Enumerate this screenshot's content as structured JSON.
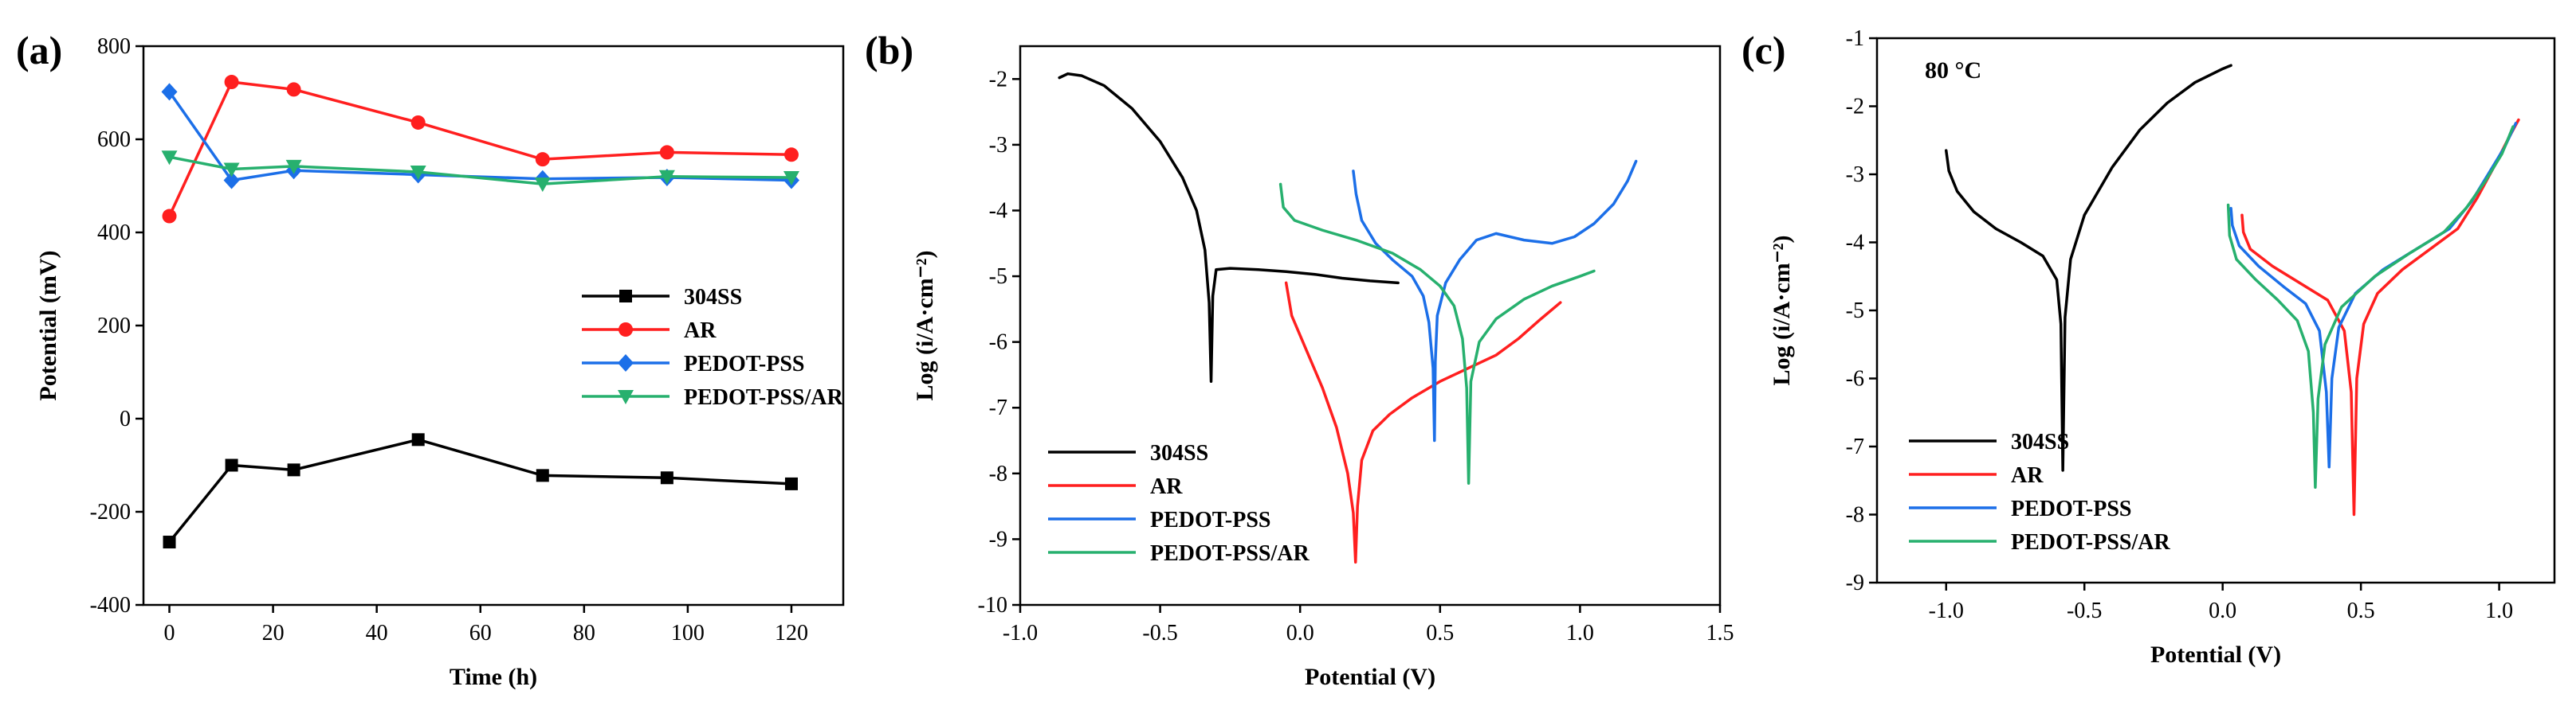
{
  "figure": {
    "panels": [
      "(a)",
      "(b)",
      "(c)"
    ]
  },
  "colors": {
    "304SS": "#000000",
    "AR": "#ff1f1f",
    "PEDOT-PSS": "#1c6fe8",
    "PEDOT-PSS/AR": "#27b06e"
  },
  "chart_data": [
    {
      "panel": "(a)",
      "type": "line",
      "title": "",
      "xlabel": "Time (h)",
      "ylabel": "Potential (mV)",
      "xlim": [
        -5,
        130
      ],
      "ylim": [
        -400,
        800
      ],
      "xticks": [
        0,
        20,
        40,
        60,
        80,
        100,
        120
      ],
      "yticks": [
        -400,
        -200,
        0,
        200,
        400,
        600,
        800
      ],
      "legend_position": "center-right",
      "x": [
        0,
        12,
        24,
        48,
        72,
        96,
        120
      ],
      "series": [
        {
          "name": "304SS",
          "marker": "square",
          "values": [
            -265,
            -100,
            -110,
            -45,
            -122,
            -127,
            -140
          ]
        },
        {
          "name": "AR",
          "marker": "circle",
          "values": [
            435,
            723,
            707,
            636,
            557,
            572,
            567
          ]
        },
        {
          "name": "PEDOT-PSS",
          "marker": "diamond",
          "values": [
            702,
            512,
            533,
            524,
            515,
            518,
            512
          ]
        },
        {
          "name": "PEDOT-PSS/AR",
          "marker": "triangle-down",
          "values": [
            562,
            536,
            542,
            530,
            504,
            520,
            518
          ]
        }
      ]
    },
    {
      "panel": "(b)",
      "type": "line",
      "title": "",
      "xlabel": "Potential (V)",
      "ylabel": "Log (i/A·cm⁻²)",
      "xlim": [
        -1.0,
        1.5
      ],
      "ylim": [
        -10,
        -1.5
      ],
      "xticks": [
        -1.0,
        -0.5,
        0.0,
        0.5,
        1.0,
        1.5
      ],
      "yticks": [
        -10,
        -9,
        -8,
        -7,
        -6,
        -5,
        -4,
        -3,
        -2
      ],
      "legend_position": "bottom-left",
      "series": [
        {
          "name": "304SS",
          "points": [
            [
              -0.86,
              -1.98
            ],
            [
              -0.83,
              -1.92
            ],
            [
              -0.78,
              -1.95
            ],
            [
              -0.7,
              -2.1
            ],
            [
              -0.6,
              -2.45
            ],
            [
              -0.5,
              -2.95
            ],
            [
              -0.42,
              -3.5
            ],
            [
              -0.37,
              -4.0
            ],
            [
              -0.34,
              -4.6
            ],
            [
              -0.325,
              -5.4
            ],
            [
              -0.318,
              -6.6
            ],
            [
              -0.312,
              -5.3
            ],
            [
              -0.3,
              -4.9
            ],
            [
              -0.25,
              -4.88
            ],
            [
              -0.15,
              -4.9
            ],
            [
              -0.05,
              -4.93
            ],
            [
              0.05,
              -4.97
            ],
            [
              0.15,
              -5.03
            ],
            [
              0.25,
              -5.07
            ],
            [
              0.35,
              -5.1
            ]
          ]
        },
        {
          "name": "AR",
          "points": [
            [
              -0.05,
              -5.1
            ],
            [
              -0.03,
              -5.6
            ],
            [
              0.02,
              -6.1
            ],
            [
              0.08,
              -6.7
            ],
            [
              0.13,
              -7.3
            ],
            [
              0.17,
              -8.0
            ],
            [
              0.19,
              -8.6
            ],
            [
              0.198,
              -9.35
            ],
            [
              0.205,
              -8.5
            ],
            [
              0.22,
              -7.8
            ],
            [
              0.26,
              -7.35
            ],
            [
              0.32,
              -7.1
            ],
            [
              0.4,
              -6.85
            ],
            [
              0.5,
              -6.6
            ],
            [
              0.6,
              -6.4
            ],
            [
              0.7,
              -6.2
            ],
            [
              0.78,
              -5.95
            ],
            [
              0.86,
              -5.65
            ],
            [
              0.93,
              -5.4
            ]
          ]
        },
        {
          "name": "PEDOT-PSS",
          "points": [
            [
              0.19,
              -3.4
            ],
            [
              0.2,
              -3.75
            ],
            [
              0.22,
              -4.15
            ],
            [
              0.27,
              -4.5
            ],
            [
              0.33,
              -4.75
            ],
            [
              0.4,
              -5.0
            ],
            [
              0.44,
              -5.3
            ],
            [
              0.46,
              -5.7
            ],
            [
              0.475,
              -6.4
            ],
            [
              0.48,
              -7.5
            ],
            [
              0.483,
              -6.3
            ],
            [
              0.49,
              -5.6
            ],
            [
              0.52,
              -5.1
            ],
            [
              0.57,
              -4.75
            ],
            [
              0.63,
              -4.45
            ],
            [
              0.7,
              -4.35
            ],
            [
              0.8,
              -4.45
            ],
            [
              0.9,
              -4.5
            ],
            [
              0.98,
              -4.4
            ],
            [
              1.05,
              -4.2
            ],
            [
              1.12,
              -3.9
            ],
            [
              1.17,
              -3.55
            ],
            [
              1.2,
              -3.25
            ]
          ]
        },
        {
          "name": "PEDOT-PSS/AR",
          "points": [
            [
              -0.07,
              -3.6
            ],
            [
              -0.06,
              -3.95
            ],
            [
              -0.02,
              -4.15
            ],
            [
              0.08,
              -4.3
            ],
            [
              0.2,
              -4.45
            ],
            [
              0.33,
              -4.65
            ],
            [
              0.43,
              -4.9
            ],
            [
              0.5,
              -5.15
            ],
            [
              0.55,
              -5.45
            ],
            [
              0.58,
              -5.95
            ],
            [
              0.595,
              -6.7
            ],
            [
              0.602,
              -8.15
            ],
            [
              0.61,
              -6.6
            ],
            [
              0.64,
              -6.0
            ],
            [
              0.7,
              -5.65
            ],
            [
              0.8,
              -5.35
            ],
            [
              0.9,
              -5.15
            ],
            [
              1.0,
              -5.0
            ],
            [
              1.05,
              -4.92
            ]
          ]
        }
      ]
    },
    {
      "panel": "(c)",
      "type": "line",
      "title": "",
      "annotation": "80 °C",
      "xlabel": "Potential (V)",
      "ylabel": "Log (i/A·cm⁻²)",
      "xlim": [
        -1.25,
        1.2
      ],
      "ylim": [
        -9,
        -1
      ],
      "xticks": [
        -1.0,
        -0.5,
        0.0,
        0.5,
        1.0
      ],
      "yticks": [
        -9,
        -8,
        -7,
        -6,
        -5,
        -4,
        -3,
        -2,
        -1
      ],
      "legend_position": "bottom-left",
      "series": [
        {
          "name": "304SS",
          "points": [
            [
              -1.0,
              -2.65
            ],
            [
              -0.99,
              -2.95
            ],
            [
              -0.96,
              -3.25
            ],
            [
              -0.9,
              -3.55
            ],
            [
              -0.82,
              -3.8
            ],
            [
              -0.73,
              -4.0
            ],
            [
              -0.65,
              -4.2
            ],
            [
              -0.6,
              -4.55
            ],
            [
              -0.585,
              -5.2
            ],
            [
              -0.578,
              -7.35
            ],
            [
              -0.57,
              -5.1
            ],
            [
              -0.55,
              -4.25
            ],
            [
              -0.5,
              -3.6
            ],
            [
              -0.4,
              -2.9
            ],
            [
              -0.3,
              -2.35
            ],
            [
              -0.2,
              -1.95
            ],
            [
              -0.1,
              -1.65
            ],
            [
              0.0,
              -1.45
            ],
            [
              0.03,
              -1.4
            ]
          ]
        },
        {
          "name": "AR",
          "points": [
            [
              0.07,
              -3.6
            ],
            [
              0.075,
              -3.85
            ],
            [
              0.1,
              -4.1
            ],
            [
              0.18,
              -4.35
            ],
            [
              0.28,
              -4.6
            ],
            [
              0.38,
              -4.85
            ],
            [
              0.44,
              -5.3
            ],
            [
              0.465,
              -6.2
            ],
            [
              0.475,
              -8.0
            ],
            [
              0.485,
              -6.0
            ],
            [
              0.51,
              -5.2
            ],
            [
              0.56,
              -4.75
            ],
            [
              0.65,
              -4.4
            ],
            [
              0.75,
              -4.1
            ],
            [
              0.85,
              -3.8
            ],
            [
              0.92,
              -3.35
            ],
            [
              0.98,
              -2.9
            ],
            [
              1.03,
              -2.5
            ],
            [
              1.07,
              -2.2
            ]
          ]
        },
        {
          "name": "PEDOT-PSS",
          "points": [
            [
              0.03,
              -3.5
            ],
            [
              0.035,
              -3.75
            ],
            [
              0.06,
              -4.05
            ],
            [
              0.13,
              -4.35
            ],
            [
              0.22,
              -4.65
            ],
            [
              0.3,
              -4.9
            ],
            [
              0.35,
              -5.3
            ],
            [
              0.375,
              -6.2
            ],
            [
              0.385,
              -7.3
            ],
            [
              0.395,
              -6.0
            ],
            [
              0.42,
              -5.25
            ],
            [
              0.48,
              -4.75
            ],
            [
              0.58,
              -4.4
            ],
            [
              0.7,
              -4.1
            ],
            [
              0.82,
              -3.8
            ],
            [
              0.9,
              -3.4
            ],
            [
              0.96,
              -3.0
            ],
            [
              1.02,
              -2.6
            ],
            [
              1.06,
              -2.25
            ]
          ]
        },
        {
          "name": "PEDOT-PSS/AR",
          "points": [
            [
              0.02,
              -3.45
            ],
            [
              0.025,
              -3.9
            ],
            [
              0.05,
              -4.25
            ],
            [
              0.12,
              -4.55
            ],
            [
              0.2,
              -4.85
            ],
            [
              0.27,
              -5.15
            ],
            [
              0.31,
              -5.6
            ],
            [
              0.328,
              -6.5
            ],
            [
              0.335,
              -7.6
            ],
            [
              0.345,
              -6.3
            ],
            [
              0.37,
              -5.5
            ],
            [
              0.43,
              -4.95
            ],
            [
              0.55,
              -4.5
            ],
            [
              0.68,
              -4.15
            ],
            [
              0.8,
              -3.85
            ],
            [
              0.88,
              -3.5
            ],
            [
              0.95,
              -3.1
            ],
            [
              1.01,
              -2.7
            ],
            [
              1.05,
              -2.3
            ]
          ]
        }
      ]
    }
  ]
}
